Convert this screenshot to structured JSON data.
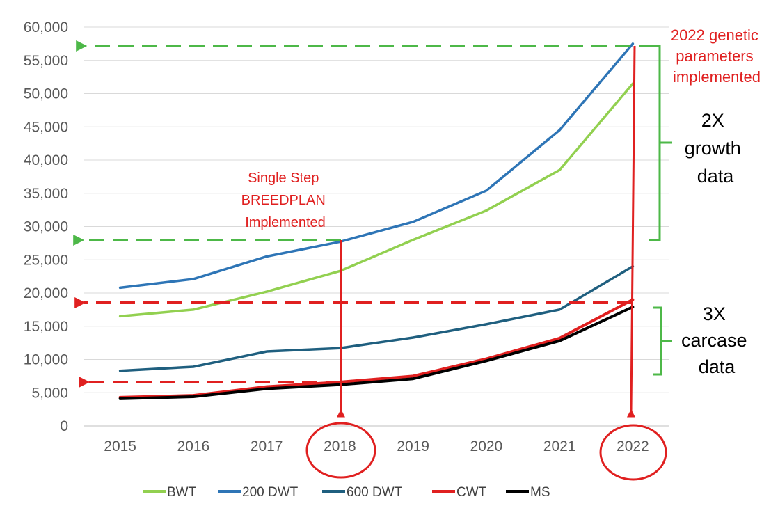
{
  "chart_data": {
    "type": "line",
    "categories": [
      "2015",
      "2016",
      "2017",
      "2018",
      "2019",
      "2020",
      "2021",
      "2022"
    ],
    "ylim": [
      0,
      60000
    ],
    "yticks": [
      0,
      5000,
      10000,
      15000,
      20000,
      25000,
      30000,
      35000,
      40000,
      45000,
      50000,
      55000,
      60000
    ],
    "ytick_labels": [
      "0",
      "5,000",
      "10,000",
      "15,000",
      "20,000",
      "25,000",
      "30,000",
      "35,000",
      "40,000",
      "45,000",
      "50,000",
      "55,000",
      "60,000"
    ],
    "grid": "horizontal",
    "legend_position": "bottom",
    "series": [
      {
        "name": "BWT",
        "color": "#92d050",
        "values": [
          16500,
          17500,
          20200,
          23300,
          28000,
          32400,
          38500,
          51500
        ]
      },
      {
        "name": "200 DWT",
        "color": "#2e75b6",
        "values": [
          20800,
          22100,
          25500,
          27700,
          30700,
          35400,
          44500,
          57500
        ]
      },
      {
        "name": "600 DWT",
        "color": "#1f5f7f",
        "values": [
          8300,
          8900,
          11200,
          11700,
          13300,
          15300,
          17500,
          24000
        ]
      },
      {
        "name": "CWT",
        "color": "#e02020",
        "values": [
          4300,
          4600,
          5900,
          6600,
          7500,
          10100,
          13200,
          19000
        ]
      },
      {
        "name": "MS",
        "color": "#000000",
        "values": [
          4100,
          4400,
          5600,
          6200,
          7100,
          9800,
          12800,
          17900
        ]
      }
    ],
    "annotations": {
      "single_step": [
        "Single Step",
        "BREEDPLAN",
        "Implemented"
      ],
      "genetic_params": [
        "2022 genetic",
        "parameters",
        "implemented"
      ],
      "growth": [
        "2X",
        "growth",
        "data"
      ],
      "carcase": [
        "3X",
        "carcase",
        "data"
      ]
    },
    "colors": {
      "annotation_red": "#e02020",
      "annotation_green": "#4db848",
      "grid": "#d9d9d9",
      "tick_text": "#595959"
    }
  }
}
